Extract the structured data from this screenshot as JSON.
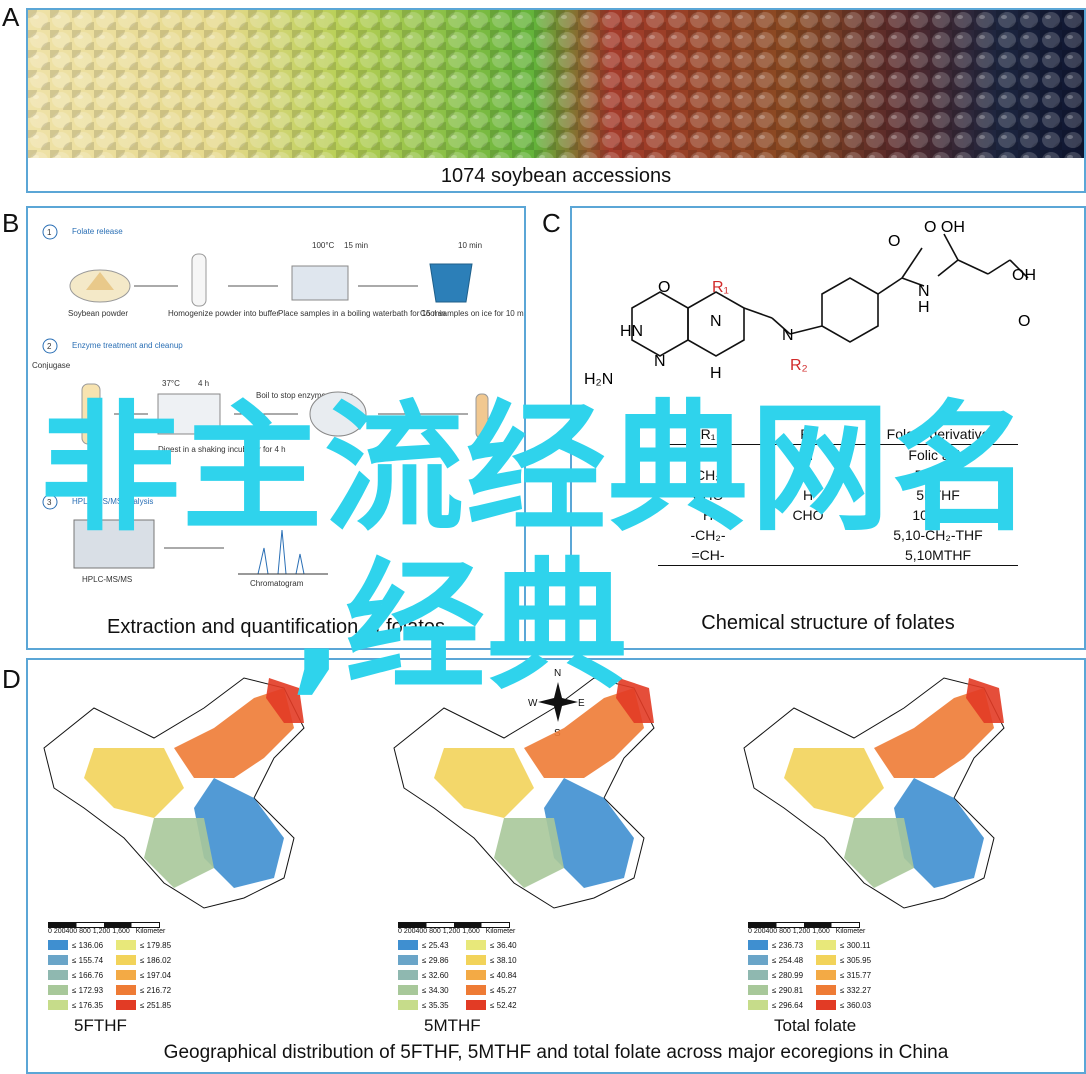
{
  "panels": {
    "a": {
      "label": "A",
      "caption": "1074 soybean accessions"
    },
    "b": {
      "label": "B",
      "caption": "Extraction and quantification of folates",
      "steps": [
        {
          "number": "1",
          "title": "Folate release"
        },
        {
          "number": "2",
          "title": "Enzyme treatment and cleanup"
        },
        {
          "number": "3",
          "title": "HPLC-MS/MS analysis"
        }
      ],
      "items": {
        "soybean_powder": "Soybean powder",
        "homogenize": "Homogenize powder into buffer",
        "boiling": "Place samples in a boiling waterbath for 15 min",
        "cool": "Cool samples on ice for 10 min",
        "conjugase": "Conjugase",
        "digest": "Digest in a shaking incubator for 4 h",
        "boil_stop": "Boil to stop enzyme activity",
        "hplc_ms": "HPLC-MS/MS",
        "chromatogram": "Chromatogram",
        "temp1": "100°C",
        "time1": "15 min",
        "time2": "10 min",
        "temp2": "37°C",
        "time3": "4 h"
      }
    },
    "c": {
      "label": "C",
      "caption": "Chemical structure of folates",
      "table_headers": [
        "R₁",
        "R₂",
        "Folate derivative"
      ],
      "table_rows": [
        [
          "H",
          "H",
          "Folic acid"
        ],
        [
          "CH₃",
          "H",
          "5MTHF"
        ],
        [
          "CHO",
          "H",
          "5FTHF"
        ],
        [
          "H",
          "CHO",
          "10FTHF"
        ],
        [
          "-CH₂-",
          "",
          "5,10-CH₂-THF"
        ],
        [
          "=CH-",
          "",
          "5,10MTHF"
        ]
      ]
    },
    "d": {
      "label": "D",
      "caption": "Geographical distribution of 5FTHF, 5MTHF and total folate across major ecoregions in China",
      "compass": {
        "n": "N",
        "s": "S",
        "e": "E",
        "w": "W"
      },
      "scale": {
        "ticks": "0 200400   800   1,200   1,600",
        "unit": "Kilometer"
      },
      "maps": [
        {
          "title": "5FTHF",
          "legend": [
            "≤ 136.06",
            "≤ 155.74",
            "≤ 166.76",
            "≤ 172.93",
            "≤ 176.35",
            "≤ 179.85",
            "≤ 186.02",
            "≤ 197.04",
            "≤ 216.72",
            "≤ 251.85"
          ]
        },
        {
          "title": "5MTHF",
          "legend": [
            "≤ 25.43",
            "≤ 29.86",
            "≤ 32.60",
            "≤ 34.30",
            "≤ 35.35",
            "≤ 36.40",
            "≤ 38.10",
            "≤ 40.84",
            "≤ 45.27",
            "≤ 52.42"
          ]
        },
        {
          "title": "Total folate",
          "legend": [
            "≤ 236.73",
            "≤ 254.48",
            "≤ 280.99",
            "≤ 290.81",
            "≤ 296.64",
            "≤ 300.11",
            "≤ 305.95",
            "≤ 315.77",
            "≤ 332.27",
            "≤ 360.03"
          ]
        }
      ],
      "legend_colors": [
        "#3f8fd0",
        "#6aa5c8",
        "#8fb8b0",
        "#a8c89a",
        "#c6dc8a",
        "#e8e87a",
        "#f2d35a",
        "#f3aa45",
        "#ee7b35",
        "#e23b25"
      ]
    }
  },
  "watermark": {
    "line1": "非主流经典网名",
    "line2": ",经典"
  }
}
